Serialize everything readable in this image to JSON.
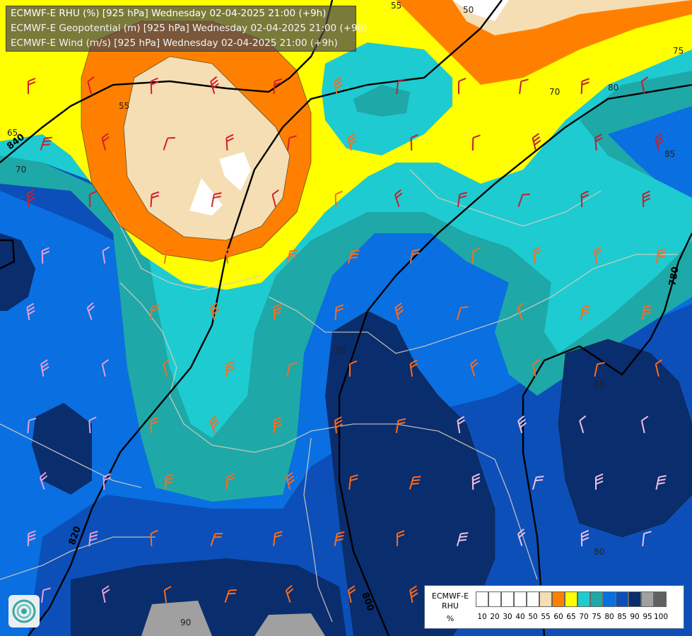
{
  "header": {
    "line1": "ECMWF-E RHU (%) [925 hPa] Wednesday 02-04-2025 21:00 (+9h)",
    "line2": "ECMWF-E Geopotential (m) [925 hPa] Wednesday 02-04-2025 21:00 (+9h)",
    "line3": "ECMWF-E Wind (m/s) [925 hPa] Wednesday 02-04-2025 21:00 (+9h)"
  },
  "legend": {
    "title_line1": "ECMWF-E",
    "title_line2": "RHU",
    "title_line3": "%",
    "ticks": [
      "10",
      "20",
      "30",
      "40",
      "50",
      "55",
      "60",
      "65",
      "70",
      "75",
      "80",
      "85",
      "90",
      "95",
      "100"
    ],
    "colors": [
      "#ffffff",
      "#ffffff",
      "#ffffff",
      "#ffffff",
      "#ffffff",
      "#f5deb3",
      "#ff8000",
      "#ffff00",
      "#1ecbd0",
      "#1fa8a8",
      "#0a6fe0",
      "#0c4fb8",
      "#0a2d6e",
      "#a0a0a0",
      "#606060"
    ]
  },
  "contour_labels": {
    "rh": [
      "55",
      "50",
      "55",
      "65",
      "70",
      "70",
      "80",
      "75",
      "85",
      "85",
      "80",
      "85",
      "90"
    ],
    "geopotential": [
      "840",
      "780",
      "820",
      "800"
    ]
  },
  "colors": {
    "rh_55": "#f5deb3",
    "rh_60": "#ff8000",
    "rh_65": "#ffff00",
    "rh_70": "#1ecbd0",
    "rh_75": "#1fa8a8",
    "rh_80": "#0a6fe0",
    "rh_85": "#0c4fb8",
    "rh_90": "#0a2d6e",
    "rh_95": "#a0a0a0"
  },
  "logo": {
    "icon": "ecmwf-logo-icon"
  }
}
